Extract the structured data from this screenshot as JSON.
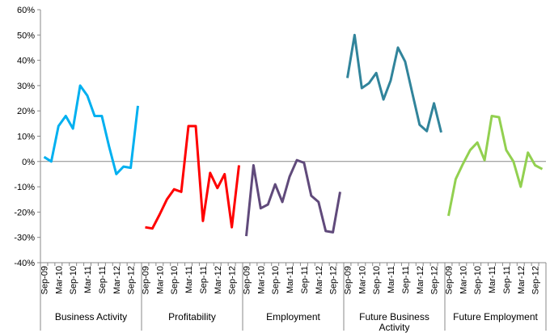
{
  "chart_data": {
    "type": "line",
    "categories": [
      "Sep-09",
      null,
      "Mar-10",
      null,
      "Sep-10",
      null,
      "Mar-11",
      null,
      "Sep-11",
      null,
      "Mar-12",
      null,
      "Sep-12",
      null
    ],
    "series": [
      {
        "name": "Business Activity",
        "color": "#00b0f0",
        "values": [
          1.8,
          0,
          14,
          18,
          13,
          30,
          26,
          18,
          18,
          6,
          -5,
          -2,
          -2.5,
          22
        ]
      },
      {
        "name": "Profitability",
        "color": "#ff0000",
        "values": [
          -26,
          -26.5,
          -21,
          -15,
          -11,
          -12,
          14,
          14,
          -23.5,
          -4.5,
          -10.5,
          -5,
          -26,
          -1.5
        ]
      },
      {
        "name": "Employment",
        "color": "#604a7b",
        "values": [
          -29.5,
          -1.5,
          -18.5,
          -17,
          -9,
          -16,
          -6,
          0.5,
          -0.5,
          -13.5,
          -16,
          -27.5,
          -28,
          -12
        ]
      },
      {
        "name": "Future Business Activity",
        "color": "#31849b",
        "values": [
          33,
          50,
          29,
          31,
          35,
          24.5,
          32,
          45,
          39.5,
          27,
          14.5,
          12,
          23,
          11.5
        ]
      },
      {
        "name": "Future Employment",
        "color": "#92d050",
        "values": [
          -21.5,
          -7,
          -1,
          4.5,
          7.5,
          0.5,
          18,
          17.5,
          4.5,
          0,
          -10,
          3.5,
          -1.5,
          -3
        ]
      }
    ],
    "ylim": [
      -40,
      60
    ],
    "yticks": [
      {
        "value": -40,
        "label": "-40%"
      },
      {
        "value": -30,
        "label": "-30%"
      },
      {
        "value": -20,
        "label": "-20%"
      },
      {
        "value": -10,
        "label": "-10%"
      },
      {
        "value": 0,
        "label": "0%"
      },
      {
        "value": 10,
        "label": "10%"
      },
      {
        "value": 20,
        "label": "20%"
      },
      {
        "value": 30,
        "label": "30%"
      },
      {
        "value": 40,
        "label": "40%"
      },
      {
        "value": 50,
        "label": "50%"
      },
      {
        "value": 60,
        "label": "60%"
      }
    ]
  }
}
